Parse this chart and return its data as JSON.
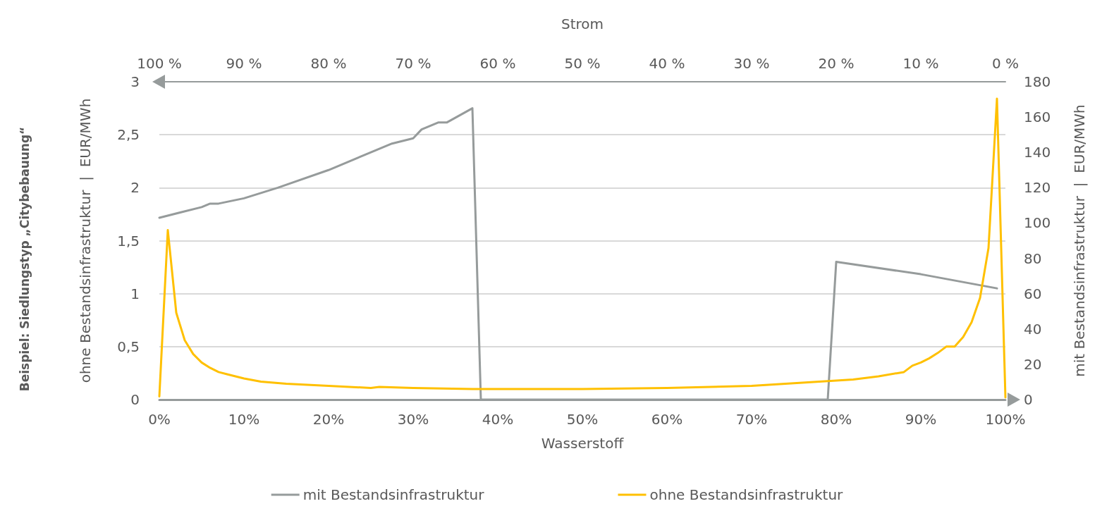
{
  "chart_data": {
    "type": "line",
    "xlabel": "Wasserstoff",
    "x2label": "Strom",
    "ylabel": "ohne Bestandsinfrastruktur  |  EUR/MWh",
    "y2label": "mit Bestandsinfrastruktur  |  EUR/MWh",
    "annotations": [
      "Beispiel: Siedlungstyp „Citybebauung“"
    ],
    "xlim": [
      0,
      100
    ],
    "xticks": [
      {
        "value": 0,
        "label": "0%"
      },
      {
        "value": 10,
        "label": "10%"
      },
      {
        "value": 20,
        "label": "20%"
      },
      {
        "value": 30,
        "label": "30%"
      },
      {
        "value": 40,
        "label": "40%"
      },
      {
        "value": 50,
        "label": "50%"
      },
      {
        "value": 60,
        "label": "60%"
      },
      {
        "value": 70,
        "label": "70%"
      },
      {
        "value": 80,
        "label": "80%"
      },
      {
        "value": 90,
        "label": "90%"
      },
      {
        "value": 100,
        "label": "100%"
      }
    ],
    "x2lim": [
      100,
      0
    ],
    "x2ticks": [
      {
        "value": 100,
        "label": "100 %"
      },
      {
        "value": 90,
        "label": "90 %"
      },
      {
        "value": 80,
        "label": "80 %"
      },
      {
        "value": 70,
        "label": "70 %"
      },
      {
        "value": 60,
        "label": "60 %"
      },
      {
        "value": 50,
        "label": "50 %"
      },
      {
        "value": 40,
        "label": "40 %"
      },
      {
        "value": 30,
        "label": "30 %"
      },
      {
        "value": 20,
        "label": "20 %"
      },
      {
        "value": 10,
        "label": "10 %"
      },
      {
        "value": 0,
        "label": "0 %"
      }
    ],
    "ylim": [
      0,
      3
    ],
    "yticks": [
      0,
      {
        "value": 0.5,
        "label": "0,5"
      },
      1,
      {
        "value": 1.5,
        "label": "1,5"
      },
      2,
      {
        "value": 2.5,
        "label": "2,5"
      },
      3
    ],
    "y2lim": [
      0,
      180
    ],
    "y2ticks": [
      0,
      20,
      40,
      60,
      80,
      100,
      120,
      140,
      160,
      180
    ],
    "grid": "y",
    "legend": "bottom",
    "marker": "none",
    "line_style": "solid",
    "series": [
      {
        "name": "mit Bestandsinfrastruktur",
        "color": "#969b9b",
        "axis": "y2",
        "x": [
          0,
          5,
          6,
          7,
          10,
          14,
          20,
          25,
          27.5,
          30,
          31,
          33,
          34,
          37,
          38,
          79,
          80,
          90,
          99
        ],
        "values": [
          103,
          109,
          111,
          111,
          114,
          120,
          130,
          140,
          145,
          148,
          153,
          157,
          157,
          165,
          0,
          0,
          78,
          71,
          63
        ]
      },
      {
        "name": "ohne Bestandsinfrastruktur",
        "color": "#ffc000",
        "x": [
          0,
          1,
          2,
          3,
          4,
          5,
          6,
          7,
          8,
          10,
          12,
          15,
          20,
          25,
          26,
          30,
          37,
          50,
          60,
          70,
          76,
          80,
          82,
          85,
          88,
          89,
          90,
          91,
          92,
          93,
          94,
          95,
          96,
          97,
          98,
          99,
          100
        ],
        "values": [
          0.03,
          1.6,
          0.82,
          0.56,
          0.43,
          0.35,
          0.3,
          0.26,
          0.24,
          0.2,
          0.17,
          0.15,
          0.13,
          0.11,
          0.12,
          0.11,
          0.1,
          0.1,
          0.11,
          0.13,
          0.16,
          0.18,
          0.19,
          0.22,
          0.26,
          0.32,
          0.35,
          0.39,
          0.44,
          0.5,
          0.5,
          0.59,
          0.73,
          0.96,
          1.43,
          2.84,
          0.02
        ]
      }
    ]
  }
}
